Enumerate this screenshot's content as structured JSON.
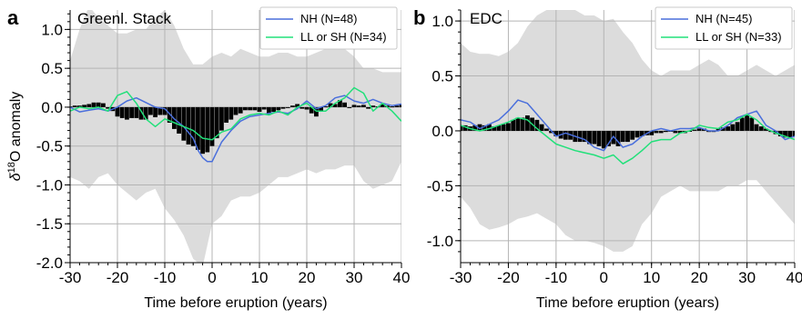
{
  "chart_data": [
    {
      "type": "bar",
      "panel_label": "a",
      "title": "Greenl. Stack",
      "xlabel": "Time before eruption (years)",
      "ylabel": "δ18O anomaly",
      "ylabel_parts": {
        "delta": "δ",
        "superscript": "18",
        "rest": "O anomaly"
      },
      "xlim": [
        -30,
        40
      ],
      "ylim": [
        -2.0,
        1.25
      ],
      "xticks": [
        -30,
        -20,
        -10,
        0,
        10,
        20,
        30,
        40
      ],
      "xtick_labels": [
        "-30",
        "-20",
        "-10",
        "0",
        "10",
        "20",
        "30",
        "40"
      ],
      "yticks": [
        -2.0,
        -1.5,
        -1.0,
        -0.5,
        0.0,
        0.5,
        1.0
      ],
      "ytick_labels": [
        "-2.0",
        "-1.5",
        "-1.0",
        "-0.5",
        "0.0",
        "0.5",
        "1.0"
      ],
      "grid": true,
      "legend_position": "top-right",
      "colors": {
        "band": "#dcdcdc",
        "bars": "#000000",
        "nh": "#4a6fdc",
        "ll": "#22e07a"
      },
      "band": {
        "x": [
          -30,
          -28,
          -26,
          -24,
          -22,
          -20,
          -18,
          -16,
          -14,
          -12,
          -10,
          -8,
          -6,
          -4,
          -2,
          0,
          2,
          4,
          6,
          8,
          10,
          12,
          14,
          16,
          18,
          20,
          22,
          24,
          26,
          28,
          30,
          32,
          34,
          36,
          38,
          40
        ],
        "upper": [
          0.6,
          1.0,
          1.3,
          1.15,
          1.05,
          0.95,
          0.95,
          1.0,
          1.0,
          1.15,
          1.25,
          1.05,
          0.75,
          0.55,
          0.55,
          0.65,
          0.7,
          0.65,
          0.75,
          0.7,
          0.65,
          0.65,
          0.7,
          0.7,
          0.65,
          0.65,
          0.7,
          0.75,
          0.85,
          0.75,
          0.65,
          0.5,
          0.5,
          0.45,
          0.45,
          0.45
        ],
        "lower": [
          -0.9,
          -0.95,
          -1.05,
          -0.9,
          -0.85,
          -1.0,
          -1.1,
          -1.2,
          -1.1,
          -1.05,
          -1.3,
          -1.45,
          -1.65,
          -1.95,
          -2.05,
          -1.5,
          -1.4,
          -1.2,
          -1.15,
          -1.15,
          -1.1,
          -1.0,
          -0.9,
          -0.9,
          -0.85,
          -0.8,
          -0.85,
          -0.8,
          -0.8,
          -0.75,
          -0.75,
          -0.95,
          -1.05,
          -1.0,
          -0.95,
          -0.7
        ]
      },
      "bars": {
        "x": [
          -30,
          -29,
          -28,
          -27,
          -26,
          -25,
          -24,
          -23,
          -22,
          -21,
          -20,
          -19,
          -18,
          -17,
          -16,
          -15,
          -14,
          -13,
          -12,
          -11,
          -10,
          -9,
          -8,
          -7,
          -6,
          -5,
          -4,
          -3,
          -2,
          -1,
          0,
          1,
          2,
          3,
          4,
          5,
          6,
          7,
          8,
          9,
          10,
          11,
          12,
          13,
          14,
          15,
          16,
          17,
          18,
          19,
          20,
          21,
          22,
          23,
          24,
          25,
          26,
          27,
          28,
          29,
          30,
          31,
          32,
          33,
          34,
          35,
          36,
          37,
          38,
          39,
          40
        ],
        "values": [
          0.01,
          0.02,
          0.02,
          0.03,
          0.04,
          0.06,
          0.06,
          0.05,
          -0.02,
          -0.05,
          -0.12,
          -0.14,
          -0.16,
          -0.14,
          -0.14,
          -0.16,
          -0.16,
          -0.1,
          -0.13,
          -0.1,
          -0.1,
          -0.2,
          -0.28,
          -0.34,
          -0.43,
          -0.48,
          -0.5,
          -0.55,
          -0.6,
          -0.58,
          -0.5,
          -0.4,
          -0.3,
          -0.2,
          -0.16,
          -0.1,
          -0.08,
          -0.04,
          -0.04,
          -0.04,
          -0.06,
          -0.03,
          -0.1,
          -0.06,
          -0.04,
          -0.02,
          0.0,
          0.02,
          0.04,
          -0.02,
          -0.03,
          -0.08,
          -0.12,
          -0.06,
          0.01,
          0.05,
          0.04,
          0.09,
          0.06,
          0.0,
          0.03,
          0.02,
          0.03,
          -0.02,
          0.02,
          0.01,
          0.04,
          0.02,
          0.01,
          0.02,
          0.03
        ]
      },
      "series": [
        {
          "name": "NH (N=48)",
          "x": [
            -30,
            -28,
            -26,
            -24,
            -22,
            -20,
            -18,
            -16,
            -14,
            -12,
            -10,
            -8,
            -6,
            -4,
            -3,
            -2,
            -1,
            0,
            2,
            4,
            6,
            8,
            10,
            12,
            14,
            16,
            18,
            20,
            22,
            24,
            26,
            28,
            30,
            32,
            34,
            36,
            38,
            40
          ],
          "y": [
            0.0,
            -0.06,
            -0.04,
            -0.02,
            -0.05,
            0.0,
            0.08,
            0.12,
            0.06,
            0.0,
            -0.02,
            -0.15,
            -0.25,
            -0.4,
            -0.55,
            -0.65,
            -0.7,
            -0.7,
            -0.45,
            -0.3,
            -0.18,
            -0.12,
            -0.1,
            -0.08,
            -0.06,
            -0.08,
            -0.02,
            0.08,
            -0.02,
            0.02,
            0.12,
            0.15,
            0.08,
            0.05,
            0.1,
            0.05,
            0.02,
            0.04
          ]
        },
        {
          "name": "LL or SH (N=34)",
          "x": [
            -30,
            -28,
            -26,
            -24,
            -22,
            -20,
            -18,
            -16,
            -14,
            -12,
            -10,
            -8,
            -6,
            -4,
            -2,
            0,
            2,
            4,
            6,
            8,
            10,
            12,
            14,
            16,
            18,
            20,
            22,
            24,
            26,
            28,
            30,
            32,
            34,
            36,
            38,
            40
          ],
          "y": [
            -0.05,
            0.0,
            -0.02,
            0.0,
            -0.05,
            0.15,
            0.2,
            0.05,
            -0.15,
            -0.25,
            -0.15,
            -0.2,
            -0.25,
            -0.3,
            -0.4,
            -0.42,
            -0.32,
            -0.28,
            -0.15,
            -0.1,
            -0.08,
            -0.1,
            -0.05,
            -0.1,
            0.0,
            0.05,
            -0.05,
            -0.05,
            0.05,
            0.12,
            0.25,
            0.18,
            -0.05,
            0.05,
            -0.05,
            -0.18
          ]
        }
      ]
    },
    {
      "type": "bar",
      "panel_label": "b",
      "title": "EDC",
      "xlabel": "Time before eruption (years)",
      "ylabel": "",
      "xlim": [
        -30,
        40
      ],
      "ylim": [
        -1.2,
        1.1
      ],
      "xticks": [
        -30,
        -20,
        -10,
        0,
        10,
        20,
        30,
        40
      ],
      "xtick_labels": [
        "-30",
        "-20",
        "-10",
        "0",
        "10",
        "20",
        "30",
        "40"
      ],
      "yticks": [
        -1.0,
        -0.5,
        0.0,
        0.5,
        1.0
      ],
      "ytick_labels": [
        "-1.0",
        "-0.5",
        "0.0",
        "0.5",
        "1.0"
      ],
      "grid": true,
      "legend_position": "top-right",
      "colors": {
        "band": "#dcdcdc",
        "bars": "#000000",
        "nh": "#4a6fdc",
        "ll": "#22e07a"
      },
      "band": {
        "x": [
          -30,
          -28,
          -26,
          -24,
          -22,
          -20,
          -18,
          -16,
          -14,
          -12,
          -10,
          -8,
          -6,
          -4,
          -2,
          0,
          2,
          4,
          6,
          8,
          10,
          12,
          14,
          16,
          18,
          20,
          22,
          24,
          26,
          28,
          30,
          32,
          34,
          36,
          38,
          40
        ],
        "upper": [
          0.8,
          0.72,
          0.7,
          0.7,
          0.68,
          0.72,
          0.8,
          0.95,
          1.05,
          1.1,
          1.1,
          1.12,
          1.1,
          1.05,
          1.05,
          1.0,
          1.02,
          0.9,
          0.8,
          0.65,
          0.55,
          0.5,
          0.55,
          0.55,
          0.55,
          0.6,
          0.65,
          0.6,
          0.5,
          0.5,
          0.55,
          0.6,
          0.55,
          0.5,
          0.55,
          0.6
        ],
        "lower": [
          -0.6,
          -0.7,
          -0.85,
          -0.9,
          -0.88,
          -0.85,
          -0.8,
          -0.78,
          -0.75,
          -0.8,
          -0.85,
          -0.95,
          -1.0,
          -1.0,
          -1.02,
          -1.05,
          -1.1,
          -1.1,
          -1.05,
          -0.85,
          -0.75,
          -0.6,
          -0.55,
          -0.5,
          -0.55,
          -0.55,
          -0.55,
          -0.55,
          -0.5,
          -0.5,
          -0.45,
          -0.45,
          -0.55,
          -0.65,
          -0.75,
          -0.85
        ]
      },
      "bars": {
        "x": [
          -30,
          -29,
          -28,
          -27,
          -26,
          -25,
          -24,
          -23,
          -22,
          -21,
          -20,
          -19,
          -18,
          -17,
          -16,
          -15,
          -14,
          -13,
          -12,
          -11,
          -10,
          -9,
          -8,
          -7,
          -6,
          -5,
          -4,
          -3,
          -2,
          -1,
          0,
          1,
          2,
          3,
          4,
          5,
          6,
          7,
          8,
          9,
          10,
          11,
          12,
          13,
          14,
          15,
          16,
          17,
          18,
          19,
          20,
          21,
          22,
          23,
          24,
          25,
          26,
          27,
          28,
          29,
          30,
          31,
          32,
          33,
          34,
          35,
          36,
          37,
          38,
          39,
          40
        ],
        "values": [
          0.04,
          0.05,
          0.04,
          0.05,
          0.06,
          0.05,
          0.06,
          0.04,
          0.05,
          0.06,
          0.07,
          0.1,
          0.12,
          0.12,
          0.14,
          0.12,
          0.1,
          0.06,
          0.02,
          -0.02,
          -0.05,
          -0.07,
          -0.08,
          -0.08,
          -0.1,
          -0.1,
          -0.1,
          -0.12,
          -0.12,
          -0.14,
          -0.16,
          -0.14,
          -0.12,
          -0.14,
          -0.1,
          -0.1,
          -0.08,
          -0.06,
          -0.05,
          -0.04,
          -0.04,
          -0.02,
          -0.02,
          -0.01,
          0.0,
          -0.02,
          -0.02,
          -0.02,
          0.0,
          0.01,
          0.02,
          0.02,
          -0.01,
          -0.01,
          0.02,
          0.03,
          0.04,
          0.06,
          0.08,
          0.12,
          0.14,
          0.12,
          0.06,
          0.04,
          0.02,
          -0.01,
          -0.03,
          -0.05,
          -0.06,
          -0.06,
          -0.05
        ]
      },
      "series": [
        {
          "name": "NH (N=45)",
          "x": [
            -30,
            -28,
            -26,
            -24,
            -22,
            -20,
            -18,
            -16,
            -14,
            -12,
            -10,
            -8,
            -6,
            -4,
            -2,
            0,
            2,
            4,
            6,
            8,
            10,
            12,
            14,
            16,
            18,
            20,
            22,
            24,
            26,
            28,
            30,
            32,
            34,
            36,
            38,
            40
          ],
          "y": [
            0.1,
            0.08,
            0.02,
            0.06,
            0.1,
            0.18,
            0.28,
            0.25,
            0.15,
            0.05,
            -0.05,
            -0.02,
            -0.05,
            -0.08,
            -0.15,
            -0.18,
            -0.05,
            -0.15,
            -0.12,
            -0.05,
            0.0,
            0.02,
            0.0,
            0.02,
            0.02,
            0.03,
            0.0,
            0.0,
            0.05,
            0.12,
            0.15,
            0.18,
            0.05,
            0.0,
            -0.08,
            -0.05
          ]
        },
        {
          "name": "LL or SH (N=33)",
          "x": [
            -30,
            -28,
            -26,
            -24,
            -22,
            -20,
            -18,
            -16,
            -14,
            -12,
            -10,
            -8,
            -6,
            -4,
            -2,
            0,
            2,
            4,
            6,
            8,
            10,
            12,
            14,
            16,
            18,
            20,
            22,
            24,
            26,
            28,
            30,
            32,
            34,
            36,
            38,
            40
          ],
          "y": [
            0.05,
            0.02,
            0.0,
            0.02,
            0.05,
            0.08,
            0.12,
            0.1,
            0.02,
            -0.05,
            -0.12,
            -0.15,
            -0.18,
            -0.2,
            -0.22,
            -0.25,
            -0.22,
            -0.3,
            -0.25,
            -0.18,
            -0.1,
            -0.08,
            -0.08,
            -0.02,
            0.0,
            0.05,
            0.03,
            0.02,
            0.08,
            0.1,
            0.15,
            0.1,
            0.02,
            -0.02,
            -0.05,
            -0.08
          ]
        }
      ]
    }
  ]
}
